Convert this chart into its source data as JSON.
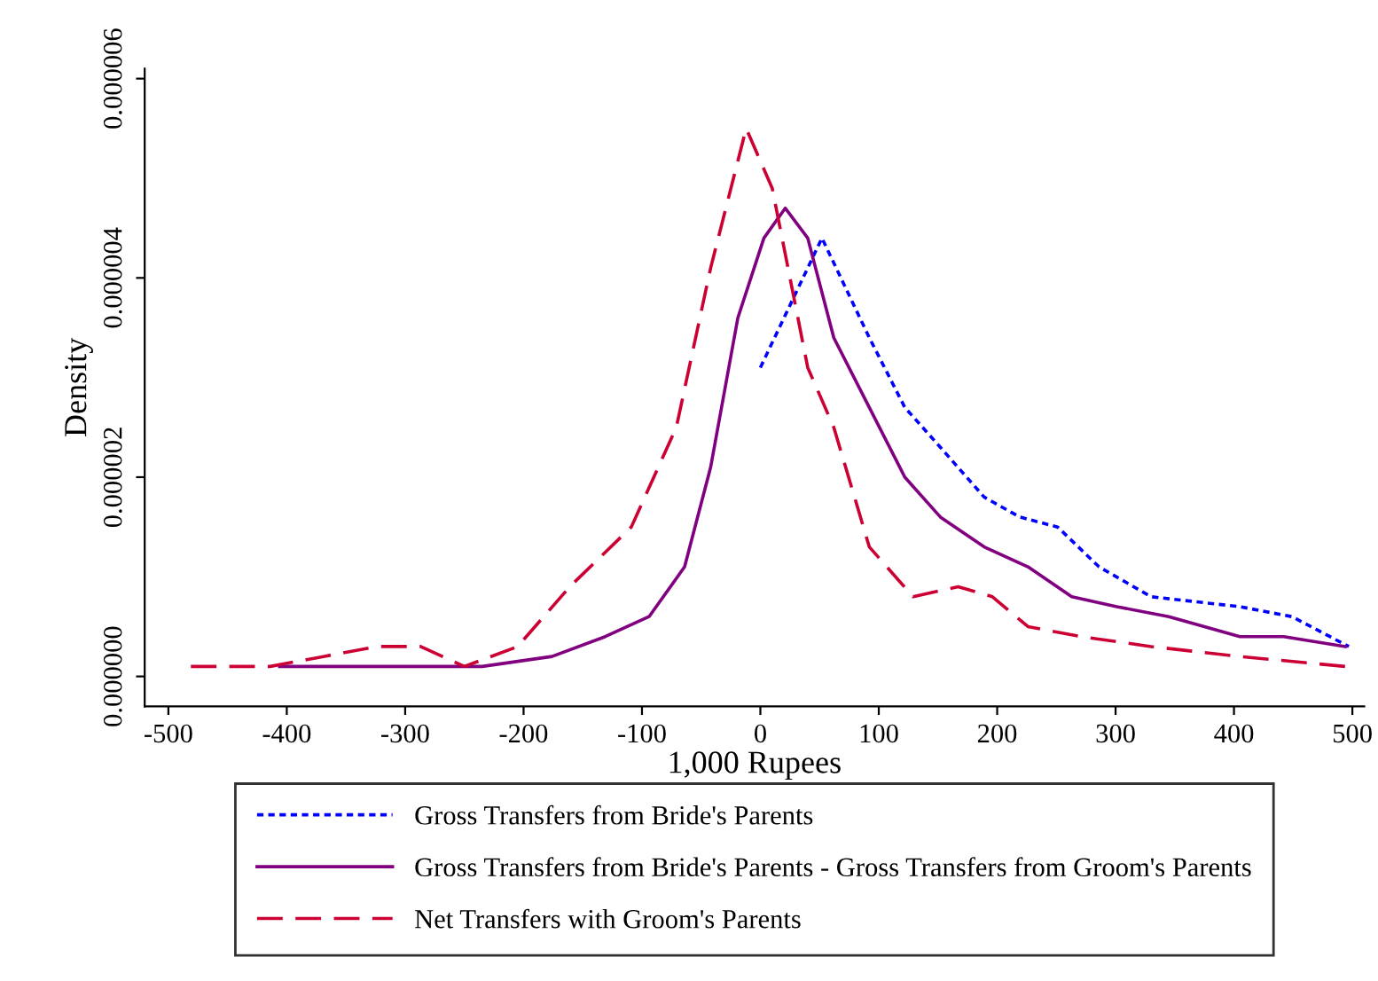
{
  "chart_data": {
    "type": "line",
    "xlabel": "1,000 Rupees",
    "ylabel": "Density",
    "xlim": [
      -520,
      510
    ],
    "xticks": [
      -500,
      -400,
      -300,
      -200,
      -100,
      0,
      100,
      200,
      300,
      400,
      500
    ],
    "ylim": [
      -3e-07,
      6.1e-06
    ],
    "yticks": [
      {
        "value": 0,
        "label": "0.000000"
      },
      {
        "value": 2e-06,
        "label": "0.000002"
      },
      {
        "value": 4e-06,
        "label": "0.000004"
      },
      {
        "value": 6e-06,
        "label": "0.000006"
      }
    ],
    "grid": false,
    "legend": "bottom",
    "series": [
      {
        "name": "Gross Transfers from Bride's Parents",
        "color": "#0000ff",
        "line_style": "dotted",
        "x": [
          0,
          52,
          92,
          122,
          152,
          189,
          219,
          251,
          286,
          330,
          405,
          449,
          497
        ],
        "values": [
          3.1e-06,
          4.4e-06,
          3.4e-06,
          2.7e-06,
          2.3e-06,
          1.8e-06,
          1.6e-06,
          1.5e-06,
          1.1e-06,
          8e-07,
          7e-07,
          6e-07,
          3e-07
        ]
      },
      {
        "name": "Gross Transfers from Bride's Parents - Gross Transfers from Groom's Parents",
        "color": "#800080",
        "line_style": "solid",
        "x": [
          -406,
          -317,
          -235,
          -176,
          -131,
          -94,
          -64,
          -42,
          -19,
          3,
          21,
          40,
          62,
          92,
          122,
          152,
          189,
          226,
          263,
          301,
          345,
          405,
          442,
          494
        ],
        "values": [
          1e-07,
          1e-07,
          1e-07,
          2e-07,
          4e-07,
          6e-07,
          1.1e-06,
          2.1e-06,
          3.6e-06,
          4.4e-06,
          4.7e-06,
          4.4e-06,
          3.4e-06,
          2.7e-06,
          2e-06,
          1.6e-06,
          1.3e-06,
          1.1e-06,
          8e-07,
          7e-07,
          6e-07,
          4e-07,
          4e-07,
          3e-07
        ]
      },
      {
        "name": "Net Transfers with Groom's Parents",
        "color": "#cc0033",
        "line_style": "dashed",
        "x": [
          -481,
          -414,
          -369,
          -324,
          -287,
          -250,
          -205,
          -161,
          -109,
          -71,
          -42,
          -12,
          10,
          40,
          62,
          92,
          129,
          167,
          196,
          226,
          271,
          330,
          405,
          494
        ],
        "values": [
          1e-07,
          1e-07,
          2e-07,
          3e-07,
          3e-07,
          1e-07,
          3e-07,
          9e-07,
          1.5e-06,
          2.5e-06,
          4.1e-06,
          5.5e-06,
          4.9e-06,
          3.1e-06,
          2.5e-06,
          1.3e-06,
          8e-07,
          9e-07,
          8e-07,
          5e-07,
          4e-07,
          3e-07,
          2e-07,
          1e-07
        ]
      }
    ]
  }
}
